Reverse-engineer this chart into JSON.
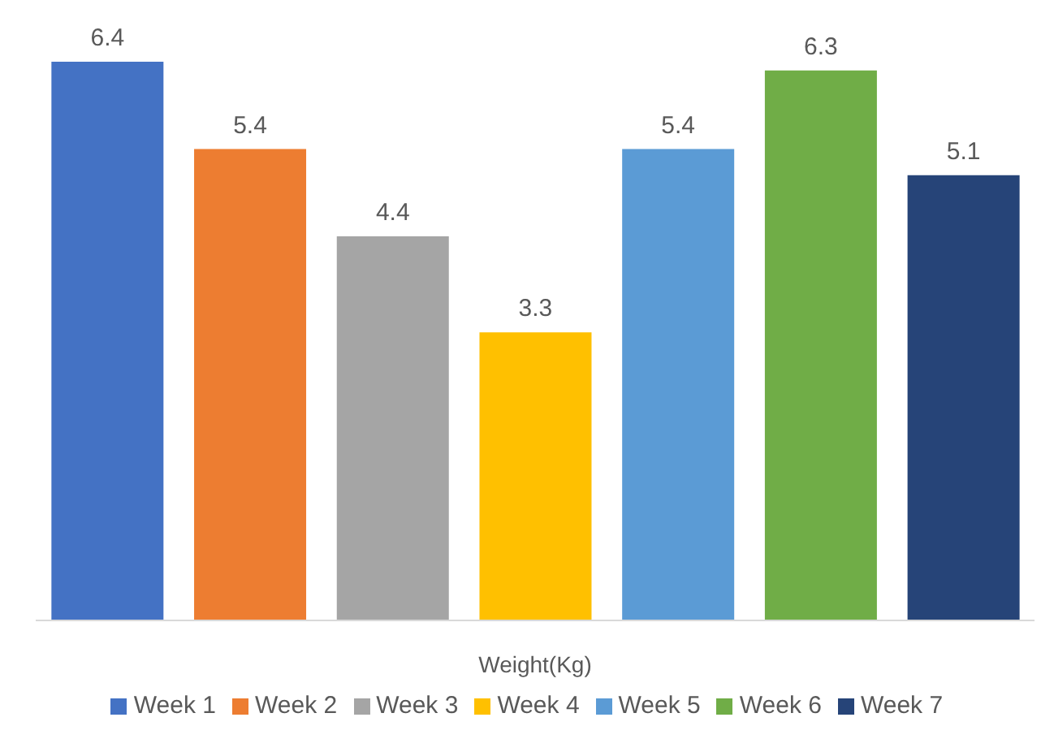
{
  "chart_data": {
    "type": "bar",
    "xlabel": "Weight(Kg)",
    "categories": [
      null,
      null,
      null,
      null,
      null,
      null,
      null
    ],
    "series": [
      {
        "name": "Week 1",
        "color": "#4472c4",
        "values": [
          6.4,
          null,
          null,
          null,
          null,
          null,
          null
        ]
      },
      {
        "name": "Week 2",
        "color": "#ed7d31",
        "values": [
          null,
          5.4,
          null,
          null,
          null,
          null,
          null
        ]
      },
      {
        "name": "Week 3",
        "color": "#a5a5a5",
        "values": [
          null,
          null,
          4.4,
          null,
          null,
          null,
          null
        ]
      },
      {
        "name": "Week 4",
        "color": "#ffc000",
        "values": [
          null,
          null,
          null,
          3.3,
          null,
          null,
          null
        ]
      },
      {
        "name": "Week 5",
        "color": "#5b9bd5",
        "values": [
          null,
          null,
          null,
          null,
          5.4,
          null,
          null
        ]
      },
      {
        "name": "Week 6",
        "color": "#70ad47",
        "values": [
          null,
          null,
          null,
          null,
          null,
          6.3,
          null
        ]
      },
      {
        "name": "Week 7",
        "color": "#264478",
        "values": [
          null,
          null,
          null,
          null,
          null,
          null,
          5.1
        ]
      }
    ],
    "stacked": true,
    "data_labels": true,
    "legend": "bottom",
    "grid": false,
    "tick_labels": false
  }
}
